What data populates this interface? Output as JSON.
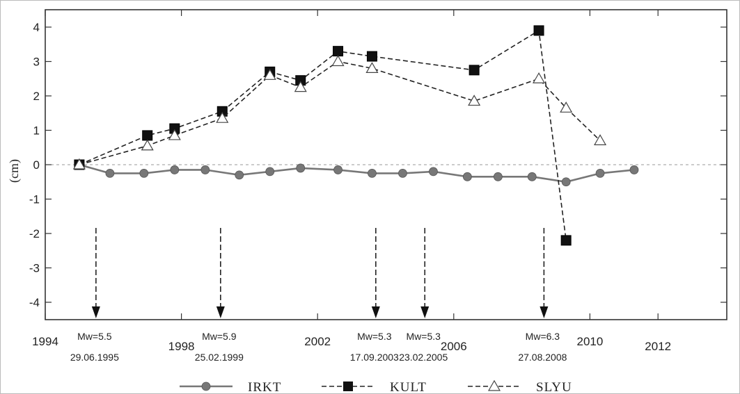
{
  "chart_data": {
    "type": "line",
    "ylabel": "(cm)",
    "xlim": [
      1994,
      2012
    ],
    "ylim": [
      -4.5,
      4.5
    ],
    "x_ticks": [
      1994,
      1998,
      2002,
      2006,
      2010,
      2012
    ],
    "y_ticks": [
      4,
      3,
      2,
      1,
      0,
      -1,
      -2,
      -3,
      -4
    ],
    "zero_line": true,
    "legend_position": "bottom",
    "series": [
      {
        "name": "IRKT",
        "line_style": "solid",
        "marker": "circle",
        "color": "#777777",
        "points": [
          {
            "x": 1995.0,
            "y": 0.0
          },
          {
            "x": 1995.9,
            "y": -0.25
          },
          {
            "x": 1996.9,
            "y": -0.25
          },
          {
            "x": 1997.8,
            "y": -0.15
          },
          {
            "x": 1998.7,
            "y": -0.15
          },
          {
            "x": 1999.7,
            "y": -0.3
          },
          {
            "x": 2000.6,
            "y": -0.2
          },
          {
            "x": 2001.5,
            "y": -0.1
          },
          {
            "x": 2002.6,
            "y": -0.15
          },
          {
            "x": 2003.6,
            "y": -0.25
          },
          {
            "x": 2004.5,
            "y": -0.25
          },
          {
            "x": 2005.4,
            "y": -0.2
          },
          {
            "x": 2006.4,
            "y": -0.35
          },
          {
            "x": 2007.3,
            "y": -0.35
          },
          {
            "x": 2008.3,
            "y": -0.35
          },
          {
            "x": 2009.3,
            "y": -0.5
          },
          {
            "x": 2010.3,
            "y": -0.25
          },
          {
            "x": 2011.3,
            "y": -0.15
          }
        ]
      },
      {
        "name": "KULT",
        "line_style": "dashed",
        "marker": "square-filled",
        "color": "#111111",
        "points": [
          {
            "x": 1995.0,
            "y": 0.0
          },
          {
            "x": 1997.0,
            "y": 0.85
          },
          {
            "x": 1997.8,
            "y": 1.05
          },
          {
            "x": 1999.2,
            "y": 1.55
          },
          {
            "x": 2000.6,
            "y": 2.7
          },
          {
            "x": 2001.5,
            "y": 2.45
          },
          {
            "x": 2002.6,
            "y": 3.3
          },
          {
            "x": 2003.6,
            "y": 3.15
          },
          {
            "x": 2006.6,
            "y": 2.75
          },
          {
            "x": 2008.5,
            "y": 3.9
          },
          {
            "x": 2009.3,
            "y": -2.2
          }
        ]
      },
      {
        "name": "SLYU",
        "line_style": "dashed",
        "marker": "triangle-open",
        "color": "#111111",
        "points": [
          {
            "x": 1995.0,
            "y": 0.0
          },
          {
            "x": 1997.0,
            "y": 0.55
          },
          {
            "x": 1997.8,
            "y": 0.85
          },
          {
            "x": 1999.2,
            "y": 1.35
          },
          {
            "x": 2000.6,
            "y": 2.6
          },
          {
            "x": 2001.5,
            "y": 2.25
          },
          {
            "x": 2002.6,
            "y": 3.0
          },
          {
            "x": 2003.6,
            "y": 2.8
          },
          {
            "x": 2006.6,
            "y": 1.85
          },
          {
            "x": 2008.5,
            "y": 2.5
          },
          {
            "x": 2009.3,
            "y": 1.65
          },
          {
            "x": 2010.3,
            "y": 0.7
          }
        ]
      }
    ],
    "events": [
      {
        "x": 1995.49,
        "magnitude": "Mw=5.5",
        "date": "29.06.1995"
      },
      {
        "x": 1999.15,
        "magnitude": "Mw=5.9",
        "date": "25.02.1999"
      },
      {
        "x": 2003.71,
        "magnitude": "Mw=5.3",
        "date": "17.09.2003"
      },
      {
        "x": 2005.15,
        "magnitude": "Mw=5.3",
        "date": "23.02.2005"
      },
      {
        "x": 2008.65,
        "magnitude": "Mw=6.3",
        "date": "27.08.2008"
      }
    ]
  }
}
